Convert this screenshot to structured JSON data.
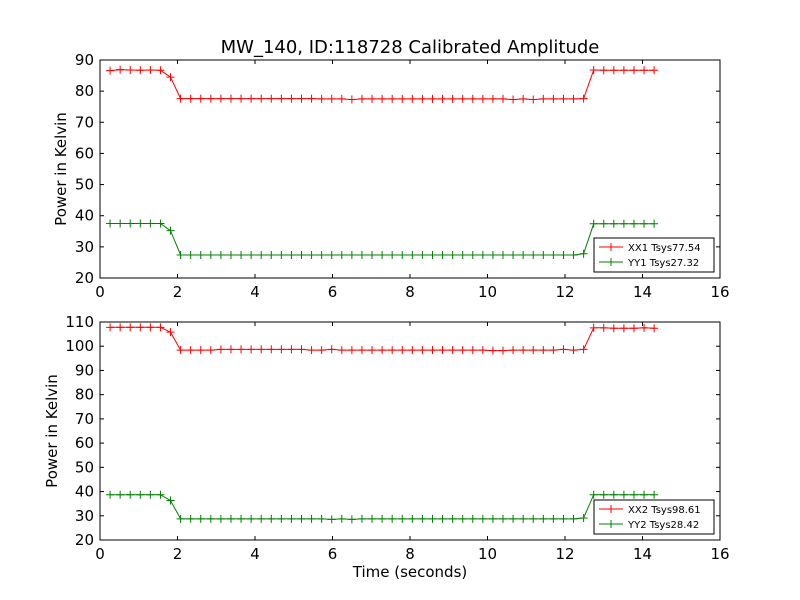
{
  "figure_title": "MW_140, ID:118728 Calibrated Amplitude",
  "chart_data": [
    {
      "type": "line",
      "title": "MW_140, ID:118728 Calibrated Amplitude",
      "xlabel": "",
      "ylabel": "Power in Kelvin",
      "xlim": [
        0,
        16
      ],
      "ylim": [
        20,
        90
      ],
      "xticks": [
        "0",
        "2",
        "4",
        "6",
        "8",
        "10",
        "12",
        "14",
        "16"
      ],
      "yticks": [
        "20",
        "30",
        "40",
        "50",
        "60",
        "70",
        "80",
        "90"
      ],
      "grid": false,
      "legend_position": "lower-right",
      "x": [
        0.26,
        0.52,
        0.78,
        1.04,
        1.3,
        1.56,
        1.82,
        2.08,
        2.34,
        2.6,
        2.86,
        3.12,
        3.38,
        3.64,
        3.9,
        4.16,
        4.42,
        4.68,
        4.94,
        5.2,
        5.46,
        5.72,
        5.98,
        6.24,
        6.5,
        6.76,
        7.02,
        7.28,
        7.54,
        7.8,
        8.06,
        8.32,
        8.58,
        8.84,
        9.1,
        9.36,
        9.62,
        9.88,
        10.14,
        10.4,
        10.66,
        10.92,
        11.18,
        11.44,
        11.7,
        11.96,
        12.22,
        12.48,
        12.74,
        13.0,
        13.26,
        13.52,
        13.78,
        14.04,
        14.3
      ],
      "series": [
        {
          "name": "XX1 Tsys77.54",
          "color": "#ff0000",
          "values": [
            86.6,
            86.9,
            86.8,
            86.7,
            86.8,
            86.7,
            84.5,
            77.6,
            77.6,
            77.6,
            77.6,
            77.6,
            77.6,
            77.6,
            77.6,
            77.6,
            77.6,
            77.6,
            77.6,
            77.6,
            77.6,
            77.5,
            77.5,
            77.5,
            77.3,
            77.5,
            77.5,
            77.5,
            77.5,
            77.5,
            77.5,
            77.5,
            77.5,
            77.5,
            77.5,
            77.5,
            77.5,
            77.5,
            77.5,
            77.5,
            77.3,
            77.5,
            77.3,
            77.5,
            77.5,
            77.5,
            77.5,
            77.6,
            86.8,
            86.7,
            86.7,
            86.7,
            86.7,
            86.7,
            86.7
          ]
        },
        {
          "name": "YY1 Tsys27.32",
          "color": "#008000",
          "values": [
            37.5,
            37.5,
            37.5,
            37.5,
            37.5,
            37.5,
            35.2,
            27.4,
            27.4,
            27.4,
            27.4,
            27.4,
            27.4,
            27.4,
            27.4,
            27.4,
            27.4,
            27.4,
            27.4,
            27.4,
            27.4,
            27.4,
            27.4,
            27.4,
            27.4,
            27.4,
            27.4,
            27.4,
            27.4,
            27.4,
            27.4,
            27.4,
            27.4,
            27.4,
            27.4,
            27.4,
            27.4,
            27.4,
            27.4,
            27.4,
            27.4,
            27.4,
            27.4,
            27.4,
            27.4,
            27.4,
            27.4,
            27.8,
            37.4,
            37.4,
            37.4,
            37.4,
            37.4,
            37.4,
            37.4
          ]
        }
      ]
    },
    {
      "type": "line",
      "title": "",
      "xlabel": "Time (seconds)",
      "ylabel": "Power in Kelvin",
      "xlim": [
        0,
        16
      ],
      "ylim": [
        20,
        110
      ],
      "xticks": [
        "0",
        "2",
        "4",
        "6",
        "8",
        "10",
        "12",
        "14",
        "16"
      ],
      "yticks": [
        "20",
        "30",
        "40",
        "50",
        "60",
        "70",
        "80",
        "90",
        "100",
        "110"
      ],
      "grid": false,
      "legend_position": "lower-right",
      "x": [
        0.26,
        0.52,
        0.78,
        1.04,
        1.3,
        1.56,
        1.82,
        2.08,
        2.34,
        2.6,
        2.86,
        3.12,
        3.38,
        3.64,
        3.9,
        4.16,
        4.42,
        4.68,
        4.94,
        5.2,
        5.46,
        5.72,
        5.98,
        6.24,
        6.5,
        6.76,
        7.02,
        7.28,
        7.54,
        7.8,
        8.06,
        8.32,
        8.58,
        8.84,
        9.1,
        9.36,
        9.62,
        9.88,
        10.14,
        10.4,
        10.66,
        10.92,
        11.18,
        11.44,
        11.7,
        11.96,
        12.22,
        12.48,
        12.74,
        13.0,
        13.26,
        13.52,
        13.78,
        14.04,
        14.3
      ],
      "series": [
        {
          "name": "XX2 Tsys98.61",
          "color": "#ff0000",
          "values": [
            107.8,
            107.8,
            107.8,
            107.8,
            107.8,
            107.8,
            105.8,
            98.4,
            98.4,
            98.4,
            98.4,
            98.7,
            98.7,
            98.7,
            98.7,
            98.7,
            98.7,
            98.7,
            98.7,
            98.7,
            98.4,
            98.4,
            98.7,
            98.4,
            98.4,
            98.4,
            98.4,
            98.4,
            98.4,
            98.4,
            98.4,
            98.4,
            98.4,
            98.4,
            98.4,
            98.4,
            98.4,
            98.4,
            98.2,
            98.2,
            98.4,
            98.4,
            98.4,
            98.4,
            98.4,
            98.7,
            98.4,
            98.7,
            107.6,
            107.6,
            107.4,
            107.4,
            107.4,
            107.6,
            107.4
          ]
        },
        {
          "name": "YY2 Tsys28.42",
          "color": "#008000",
          "values": [
            38.7,
            38.7,
            38.7,
            38.7,
            38.7,
            38.7,
            36.3,
            28.7,
            28.7,
            28.7,
            28.7,
            28.7,
            28.7,
            28.7,
            28.7,
            28.7,
            28.7,
            28.7,
            28.7,
            28.7,
            28.7,
            28.7,
            28.5,
            28.7,
            28.5,
            28.7,
            28.7,
            28.7,
            28.7,
            28.7,
            28.7,
            28.7,
            28.7,
            28.7,
            28.7,
            28.7,
            28.7,
            28.7,
            28.7,
            28.7,
            28.7,
            28.7,
            28.7,
            28.7,
            28.7,
            28.7,
            28.7,
            29.1,
            38.7,
            38.7,
            38.7,
            38.7,
            38.7,
            38.7,
            38.7
          ]
        }
      ]
    }
  ]
}
